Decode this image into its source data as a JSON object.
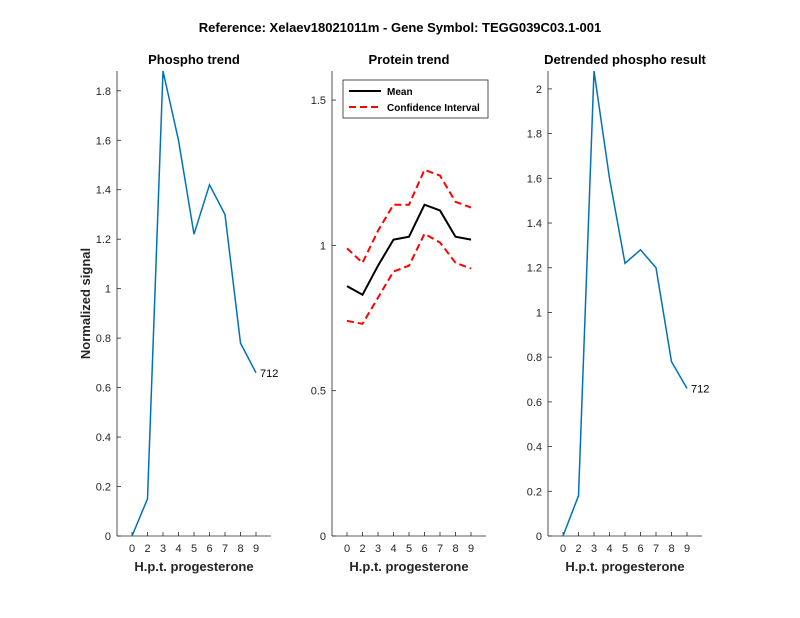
{
  "figure": {
    "title": "Reference:  Xelaev18021011m - Gene Symbol:  TEGG039C03.1-001"
  },
  "chart_data": [
    {
      "type": "line",
      "title": "Phospho trend",
      "xlabel": "H.p.t. progesterone",
      "ylabel": "Normalized signal",
      "categories": [
        "0",
        "2",
        "3",
        "4",
        "5",
        "6",
        "7",
        "8",
        "9"
      ],
      "ylim": [
        0,
        1.88
      ],
      "yticks": [
        0,
        0.2,
        0.4,
        0.6,
        0.8,
        1,
        1.2,
        1.4,
        1.6,
        1.8
      ],
      "ytick_labels": [
        "0",
        "0.2",
        "0.4",
        "0.6",
        "0.8",
        "1",
        "1.2",
        "1.4",
        "1.6",
        "1.8"
      ],
      "series": [
        {
          "values": [
            0.0,
            0.15,
            1.88,
            1.6,
            1.22,
            1.42,
            1.3,
            0.78,
            0.66
          ],
          "color": "#0072BD",
          "dash": "solid",
          "end_label": "712"
        }
      ],
      "grid": false
    },
    {
      "type": "line",
      "title": "Protein trend",
      "xlabel": "H.p.t. progesterone",
      "ylabel": "",
      "categories": [
        "0",
        "2",
        "3",
        "4",
        "5",
        "6",
        "7",
        "8",
        "9"
      ],
      "ylim": [
        0,
        1.6
      ],
      "yticks": [
        0,
        0.5,
        1,
        1.5
      ],
      "ytick_labels": [
        "0",
        "0.5",
        "1",
        "1.5"
      ],
      "series": [
        {
          "name": "Mean",
          "values": [
            0.86,
            0.83,
            0.93,
            1.02,
            1.03,
            1.14,
            1.12,
            1.03,
            1.02
          ],
          "color": "#000000",
          "dash": "solid"
        },
        {
          "name": "Confidence Interval",
          "values": [
            0.99,
            0.94,
            1.05,
            1.14,
            1.14,
            1.26,
            1.24,
            1.15,
            1.13
          ],
          "color": "#FF0000",
          "dash": "dashed"
        },
        {
          "values": [
            0.74,
            0.73,
            0.82,
            0.91,
            0.93,
            1.04,
            1.01,
            0.94,
            0.92
          ],
          "color": "#FF0000",
          "dash": "dashed"
        }
      ],
      "legend": {
        "placement": "top-left",
        "entries": [
          "Mean",
          "Confidence Interval"
        ]
      },
      "grid": false
    },
    {
      "type": "line",
      "title": "Detrended phospho result",
      "xlabel": "H.p.t. progesterone",
      "ylabel": "",
      "categories": [
        "0",
        "2",
        "3",
        "4",
        "5",
        "6",
        "7",
        "8",
        "9"
      ],
      "ylim": [
        0,
        2.08
      ],
      "yticks": [
        0,
        0.2,
        0.4,
        0.6,
        0.8,
        1,
        1.2,
        1.4,
        1.6,
        1.8,
        2
      ],
      "ytick_labels": [
        "0",
        "0.2",
        "0.4",
        "0.6",
        "0.8",
        "1",
        "1.2",
        "1.4",
        "1.6",
        "1.8",
        "2"
      ],
      "series": [
        {
          "values": [
            0.0,
            0.18,
            2.08,
            1.6,
            1.22,
            1.28,
            1.2,
            0.78,
            0.66
          ],
          "color": "#0072BD",
          "dash": "solid",
          "end_label": "712"
        }
      ],
      "grid": false
    }
  ]
}
